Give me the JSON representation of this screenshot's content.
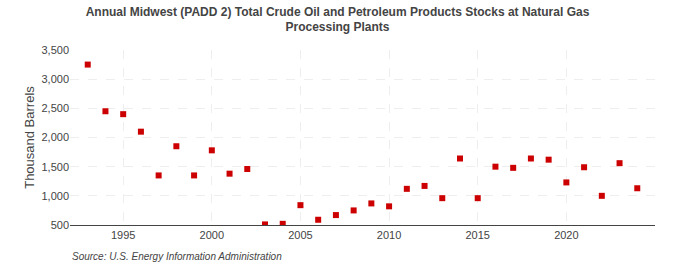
{
  "chart_data": {
    "type": "scatter",
    "title": "Annual Midwest (PADD 2) Total Crude Oil and Petroleum Products Stocks at Natural Gas\nProcessing Plants",
    "ylabel": "Thousand Barrels",
    "source": "Source: U.S. Energy Information Administration",
    "x": [
      1993,
      1994,
      1995,
      1996,
      1997,
      1998,
      1999,
      2000,
      2001,
      2002,
      2003,
      2004,
      2005,
      2006,
      2007,
      2008,
      2009,
      2010,
      2011,
      2012,
      2013,
      2014,
      2015,
      2016,
      2017,
      2018,
      2019,
      2020,
      2021,
      2022,
      2023,
      2024
    ],
    "values": [
      3250,
      2450,
      2400,
      2100,
      1350,
      1850,
      1350,
      1780,
      1380,
      1460,
      510,
      520,
      840,
      590,
      670,
      750,
      870,
      820,
      1120,
      1170,
      960,
      1640,
      960,
      1500,
      1480,
      1640,
      1620,
      1230,
      1490,
      1000,
      1560,
      1130
    ],
    "color": "#cc0000",
    "marker": "square",
    "xlim": [
      1992,
      2025
    ],
    "xticks": [
      1995,
      2000,
      2005,
      2010,
      2015,
      2020
    ],
    "ylim": [
      500,
      3500
    ],
    "yticks": [
      500,
      {
        "value": 1000,
        "label": "1,000"
      },
      {
        "value": 1500,
        "label": "1,500"
      },
      {
        "value": 2000,
        "label": "2,000"
      },
      {
        "value": 2500,
        "label": "2,500"
      },
      {
        "value": 3000,
        "label": "3,000"
      },
      {
        "value": 3500,
        "label": "3,500"
      }
    ],
    "grid": true
  }
}
